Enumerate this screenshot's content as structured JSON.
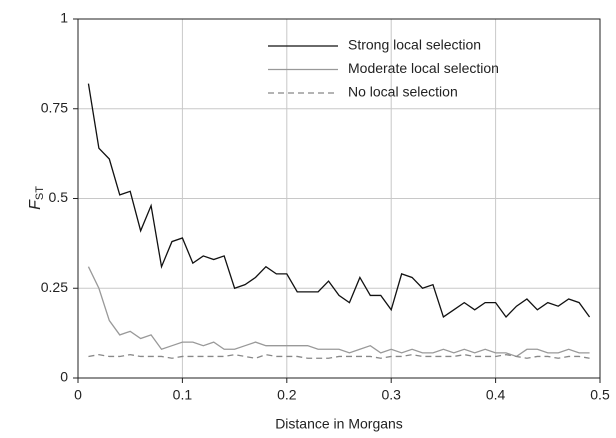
{
  "chart_data": {
    "type": "line",
    "x_label": "Distance in Morgans",
    "y_label": "F",
    "y_label_subscript": "ST",
    "x": [
      0.01,
      0.02,
      0.03,
      0.04,
      0.05,
      0.06,
      0.07,
      0.08,
      0.09,
      0.1,
      0.11,
      0.12,
      0.13,
      0.14,
      0.15,
      0.16,
      0.17,
      0.18,
      0.19,
      0.2,
      0.21,
      0.22,
      0.23,
      0.24,
      0.25,
      0.26,
      0.27,
      0.28,
      0.29,
      0.3,
      0.31,
      0.32,
      0.33,
      0.34,
      0.35,
      0.36,
      0.37,
      0.38,
      0.39,
      0.4,
      0.41,
      0.42,
      0.43,
      0.44,
      0.45,
      0.46,
      0.47,
      0.48,
      0.49
    ],
    "series": [
      {
        "name": "Strong local selection",
        "color": "#111111",
        "dash": "none",
        "values": [
          0.82,
          0.64,
          0.61,
          0.51,
          0.52,
          0.41,
          0.48,
          0.31,
          0.38,
          0.39,
          0.32,
          0.34,
          0.33,
          0.34,
          0.25,
          0.26,
          0.28,
          0.31,
          0.29,
          0.29,
          0.24,
          0.24,
          0.24,
          0.27,
          0.23,
          0.21,
          0.28,
          0.23,
          0.23,
          0.19,
          0.29,
          0.28,
          0.25,
          0.26,
          0.17,
          0.19,
          0.21,
          0.19,
          0.21,
          0.21,
          0.17,
          0.2,
          0.22,
          0.19,
          0.21,
          0.2,
          0.22,
          0.21,
          0.17
        ]
      },
      {
        "name": "Moderate local selection",
        "color": "#999999",
        "dash": "none",
        "values": [
          0.31,
          0.25,
          0.16,
          0.12,
          0.13,
          0.11,
          0.12,
          0.08,
          0.09,
          0.1,
          0.1,
          0.09,
          0.1,
          0.08,
          0.08,
          0.09,
          0.1,
          0.09,
          0.09,
          0.09,
          0.09,
          0.09,
          0.08,
          0.08,
          0.08,
          0.07,
          0.08,
          0.09,
          0.07,
          0.08,
          0.07,
          0.08,
          0.07,
          0.07,
          0.08,
          0.07,
          0.08,
          0.07,
          0.08,
          0.07,
          0.07,
          0.06,
          0.08,
          0.08,
          0.07,
          0.07,
          0.08,
          0.07,
          0.07
        ]
      },
      {
        "name": "No local selection",
        "color": "#888888",
        "dash": "6,4",
        "values": [
          0.06,
          0.065,
          0.06,
          0.06,
          0.065,
          0.06,
          0.06,
          0.06,
          0.055,
          0.06,
          0.06,
          0.06,
          0.06,
          0.06,
          0.065,
          0.06,
          0.055,
          0.065,
          0.06,
          0.06,
          0.06,
          0.055,
          0.055,
          0.055,
          0.06,
          0.06,
          0.06,
          0.06,
          0.055,
          0.06,
          0.06,
          0.065,
          0.06,
          0.06,
          0.06,
          0.06,
          0.065,
          0.06,
          0.06,
          0.06,
          0.065,
          0.06,
          0.055,
          0.06,
          0.06,
          0.055,
          0.06,
          0.06,
          0.055
        ]
      }
    ],
    "xlim": [
      0,
      0.5
    ],
    "xticks": [
      0,
      0.1,
      0.2,
      0.3,
      0.4,
      0.5
    ],
    "ylim": [
      0,
      1
    ],
    "yticks": [
      0,
      0.25,
      0.5,
      0.75,
      1
    ],
    "grid": true,
    "legend": "upper-right"
  }
}
